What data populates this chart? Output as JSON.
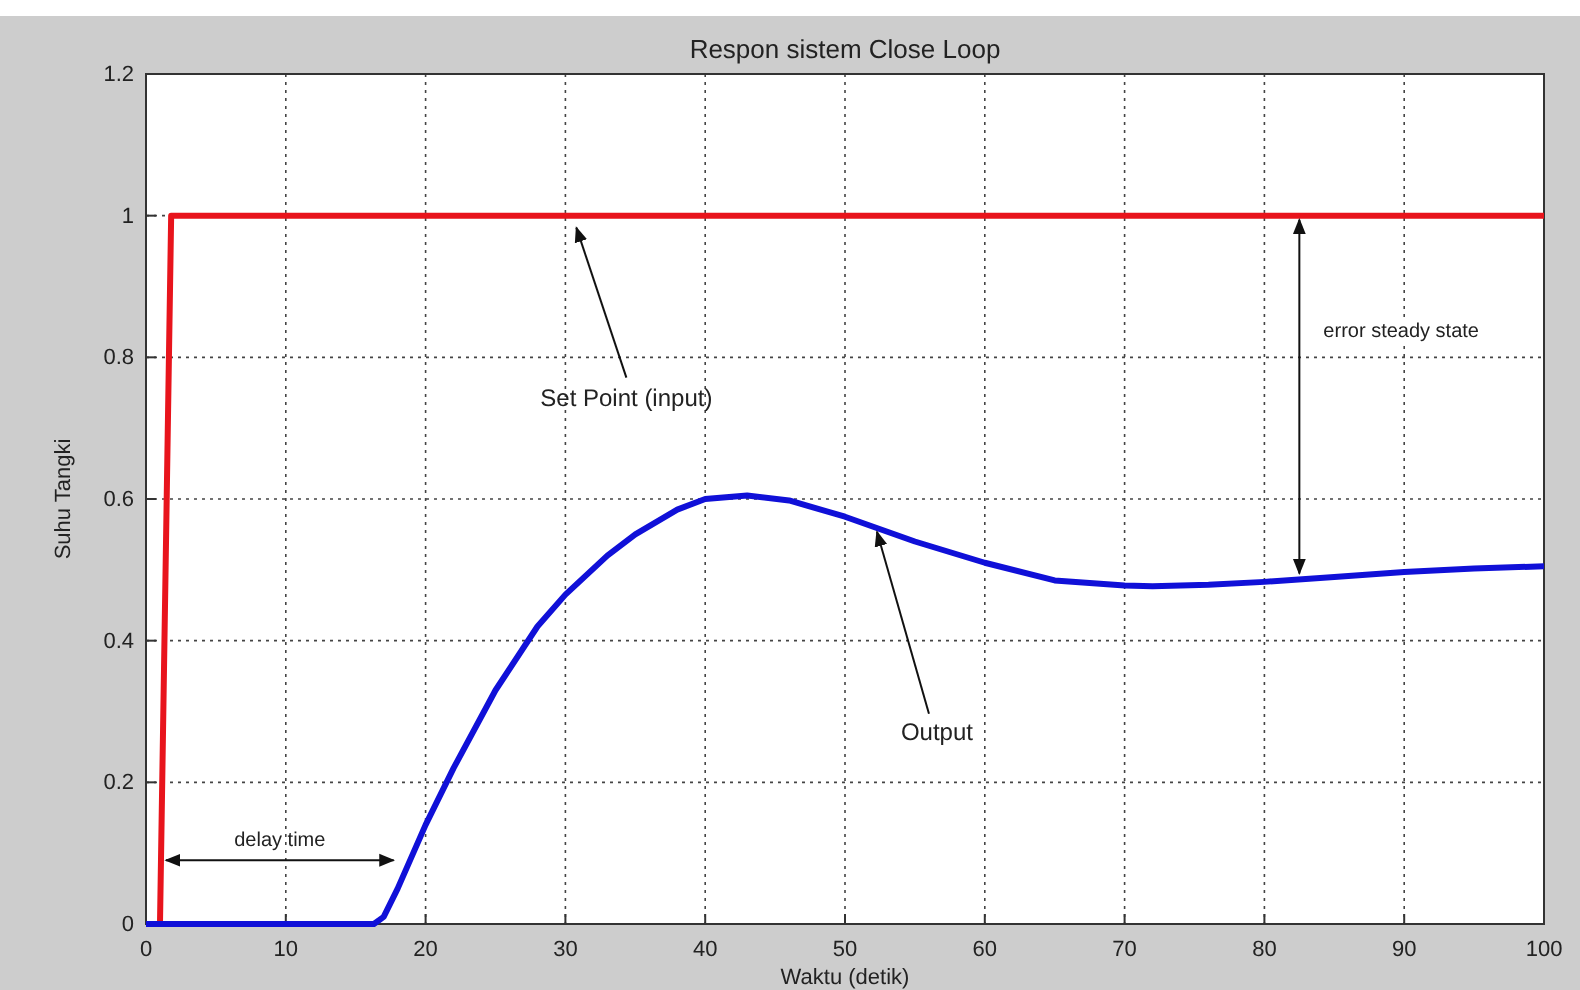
{
  "chart_data": {
    "type": "line",
    "title": "Respon sistem Close Loop",
    "xlabel": "Waktu (detik)",
    "ylabel": "Suhu Tangki",
    "xlim": [
      0,
      100
    ],
    "ylim": [
      0,
      1.2
    ],
    "xticks": [
      0,
      10,
      20,
      30,
      40,
      50,
      60,
      70,
      80,
      90,
      100
    ],
    "yticks": [
      0,
      0.2,
      0.4,
      0.6,
      0.8,
      1,
      1.2
    ],
    "grid": true,
    "line_style": "solid",
    "series": [
      {
        "color": "#e8141c",
        "x": [
          0,
          1,
          1.8,
          100
        ],
        "values": [
          0,
          0,
          1,
          1
        ]
      },
      {
        "color": "#1010d8",
        "x": [
          0,
          16.3,
          17,
          18,
          20,
          22,
          25,
          28,
          30,
          33,
          35,
          38,
          40,
          43,
          46,
          50,
          55,
          60,
          65,
          70,
          72,
          76,
          80,
          85,
          90,
          95,
          100
        ],
        "values": [
          0,
          0,
          0.01,
          0.05,
          0.14,
          0.22,
          0.33,
          0.42,
          0.465,
          0.52,
          0.55,
          0.585,
          0.6,
          0.605,
          0.598,
          0.575,
          0.54,
          0.51,
          0.485,
          0.478,
          0.477,
          0.479,
          0.483,
          0.49,
          0.497,
          0.502,
          0.505
        ]
      }
    ],
    "annotations": [
      {
        "text": "Set Point (input)",
        "x": 30.5,
        "y": 1
      },
      "error steady state",
      {
        "text": "Output",
        "x": 52,
        "y": 0.565
      },
      "delay time"
    ]
  }
}
